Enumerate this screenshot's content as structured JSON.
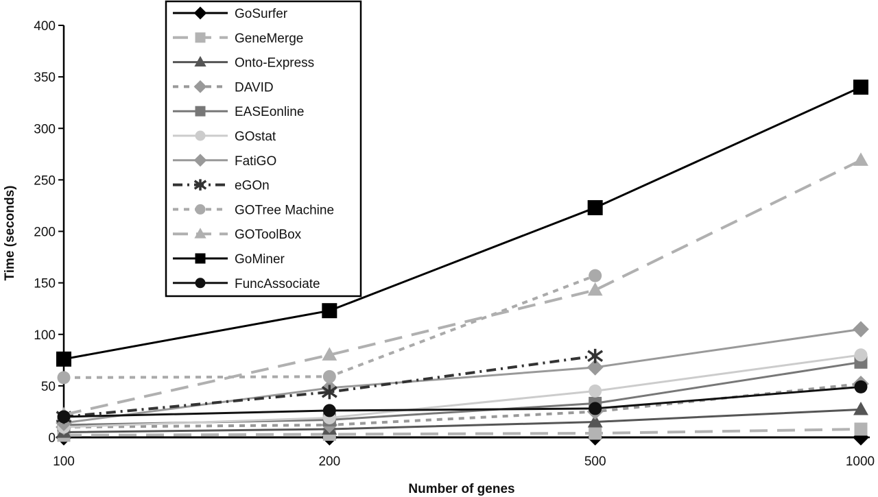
{
  "chart_data": {
    "type": "line",
    "title": "",
    "xlabel": "Number of genes",
    "ylabel": "Time (seconds)",
    "categories": [
      "100",
      "200",
      "500",
      "1000"
    ],
    "ylim": [
      0,
      400
    ],
    "yticks": [
      0,
      50,
      100,
      150,
      200,
      250,
      300,
      350,
      400
    ],
    "grid": false,
    "legend": "top-center",
    "series": [
      {
        "name": "GoSurfer",
        "values": [
          0,
          0,
          0,
          0
        ],
        "color": "#000000",
        "marker": "diamond",
        "dash": "solid"
      },
      {
        "name": "GeneMerge",
        "values": [
          2,
          3,
          4,
          8
        ],
        "color": "#b3b3b3",
        "marker": "square",
        "dash": "dash"
      },
      {
        "name": "Onto-Express",
        "values": [
          5,
          8,
          15,
          27
        ],
        "color": "#555555",
        "marker": "triangle",
        "dash": "solid"
      },
      {
        "name": "DAVID",
        "values": [
          10,
          12,
          25,
          52
        ],
        "color": "#999999",
        "marker": "diamond",
        "dash": "dot"
      },
      {
        "name": "EASEonline",
        "values": [
          12,
          17,
          33,
          73
        ],
        "color": "#777777",
        "marker": "square",
        "dash": "solid"
      },
      {
        "name": "GOstat",
        "values": [
          10,
          19,
          45,
          80
        ],
        "color": "#cccccc",
        "marker": "circle",
        "dash": "solid"
      },
      {
        "name": "FatiGO",
        "values": [
          14,
          48,
          68,
          105
        ],
        "color": "#999999",
        "marker": "diamond",
        "dash": "solid"
      },
      {
        "name": "eGOn",
        "values": [
          20,
          44,
          79,
          null
        ],
        "color": "#333333",
        "marker": "star",
        "dash": "dashdot"
      },
      {
        "name": "GOTree Machine",
        "values": [
          58,
          59,
          157,
          null
        ],
        "color": "#aaaaaa",
        "marker": "circle",
        "dash": "dot"
      },
      {
        "name": "GOToolBox",
        "values": [
          22,
          80,
          143,
          269
        ],
        "color": "#b0b0b0",
        "marker": "triangle",
        "dash": "dash"
      },
      {
        "name": "GoMiner",
        "values": [
          76,
          123,
          223,
          340
        ],
        "color": "#000000",
        "marker": "square",
        "dash": "solid"
      },
      {
        "name": "FuncAssociate",
        "values": [
          20,
          26,
          28,
          49
        ],
        "color": "#111111",
        "marker": "circle",
        "dash": "solid"
      }
    ]
  }
}
